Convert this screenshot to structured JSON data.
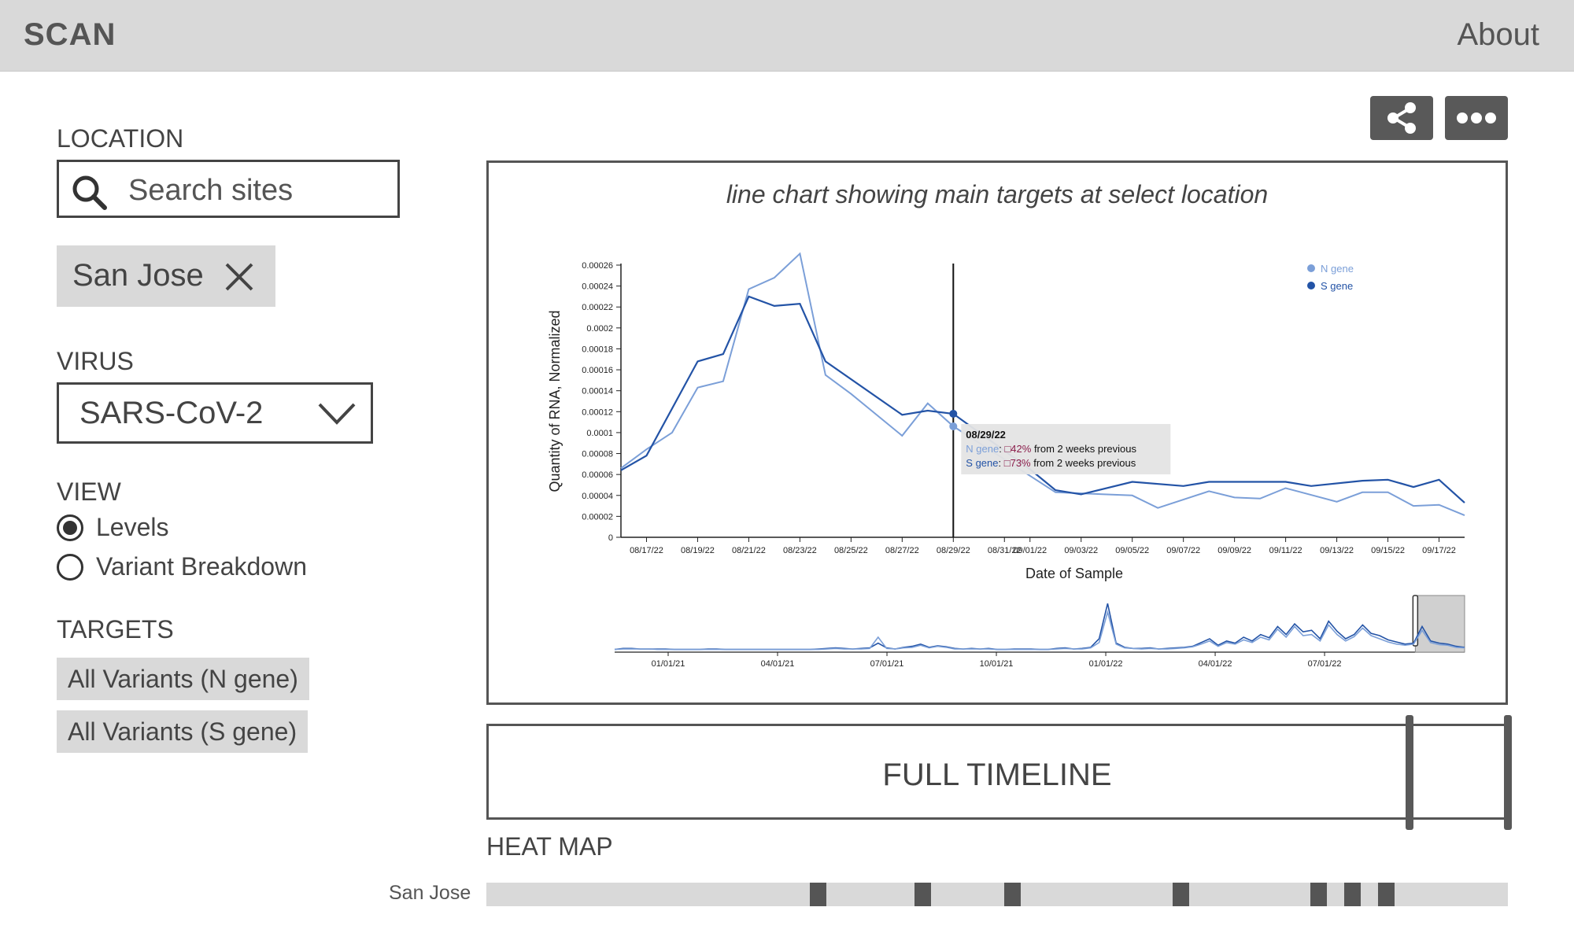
{
  "header": {
    "logo": "SCAN",
    "about": "About"
  },
  "sidebar": {
    "location_label": "LOCATION",
    "search_placeholder": "Search sites",
    "selected_location": "San Jose",
    "virus_label": "VIRUS",
    "virus_value": "SARS-CoV-2",
    "view_label": "VIEW",
    "view_options": [
      {
        "label": "Levels",
        "selected": true
      },
      {
        "label": "Variant Breakdown",
        "selected": false
      }
    ],
    "targets_label": "TARGETS",
    "targets": [
      "All Variants (N gene)",
      "All Variants (S gene)"
    ]
  },
  "actions": {
    "share_icon": "share-icon",
    "more_icon": "more-icon"
  },
  "chart_panel": {
    "caption": "line chart showing main targets at select location"
  },
  "chart_data": {
    "type": "line",
    "xlabel": "Date of Sample",
    "ylabel": "Quantity of RNA, Normalized",
    "ylim": [
      0,
      0.00026
    ],
    "y_ticks": [
      "0",
      "0.00002",
      "0.00004",
      "0.00006",
      "0.00008",
      "0.0001",
      "0.00012",
      "0.00014",
      "0.00016",
      "0.00018",
      "0.0002",
      "0.00022",
      "0.00024",
      "0.00026"
    ],
    "x_ticks": [
      "08/17/22",
      "08/19/22",
      "08/21/22",
      "08/23/22",
      "08/25/22",
      "08/27/22",
      "08/29/22",
      "08/31/22",
      "09/01/22",
      "09/03/22",
      "09/05/22",
      "09/07/22",
      "09/09/22",
      "09/11/22",
      "09/13/22",
      "09/15/22",
      "09/17/22"
    ],
    "x_range": [
      "08/16/22",
      "09/18/22"
    ],
    "legend_position": "top-right",
    "series": [
      {
        "name": "N gene",
        "color": "#7b9fd8",
        "points": [
          [
            "08/16/22",
            6.6e-05
          ],
          [
            "08/17/22",
            8.4e-05
          ],
          [
            "08/18/22",
            0.0001
          ],
          [
            "08/19/22",
            0.000143
          ],
          [
            "08/20/22",
            0.000149
          ],
          [
            "08/21/22",
            0.000237
          ],
          [
            "08/22/22",
            0.000248
          ],
          [
            "08/23/22",
            0.000271
          ],
          [
            "08/24/22",
            0.000155
          ],
          [
            "08/25/22",
            0.000137
          ],
          [
            "08/27/22",
            9.7e-05
          ],
          [
            "08/28/22",
            0.000128
          ],
          [
            "08/29/22",
            0.000106
          ],
          [
            "09/02/22",
            4.3e-05
          ],
          [
            "09/03/22",
            4.2e-05
          ],
          [
            "09/05/22",
            4e-05
          ],
          [
            "09/06/22",
            2.8e-05
          ],
          [
            "09/08/22",
            4.4e-05
          ],
          [
            "09/09/22",
            3.8e-05
          ],
          [
            "09/10/22",
            3.7e-05
          ],
          [
            "09/11/22",
            4.7e-05
          ],
          [
            "09/13/22",
            3.4e-05
          ],
          [
            "09/14/22",
            4.3e-05
          ],
          [
            "09/15/22",
            4.3e-05
          ],
          [
            "09/16/22",
            3e-05
          ],
          [
            "09/17/22",
            3.1e-05
          ],
          [
            "09/18/22",
            2.1e-05
          ]
        ]
      },
      {
        "name": "S gene",
        "color": "#2353a6",
        "points": [
          [
            "08/16/22",
            6.4e-05
          ],
          [
            "08/17/22",
            7.8e-05
          ],
          [
            "08/19/22",
            0.000168
          ],
          [
            "08/20/22",
            0.000175
          ],
          [
            "08/21/22",
            0.00023
          ],
          [
            "08/22/22",
            0.000221
          ],
          [
            "08/23/22",
            0.000223
          ],
          [
            "08/24/22",
            0.000168
          ],
          [
            "08/27/22",
            0.000117
          ],
          [
            "08/28/22",
            0.000121
          ],
          [
            "08/29/22",
            0.000118
          ],
          [
            "09/01/22",
            6.5e-05
          ],
          [
            "09/02/22",
            4.5e-05
          ],
          [
            "09/03/22",
            4.1e-05
          ],
          [
            "09/05/22",
            5.3e-05
          ],
          [
            "09/07/22",
            4.9e-05
          ],
          [
            "09/08/22",
            5.3e-05
          ],
          [
            "09/10/22",
            5.3e-05
          ],
          [
            "09/11/22",
            5.3e-05
          ],
          [
            "09/12/22",
            4.9e-05
          ],
          [
            "09/14/22",
            5.4e-05
          ],
          [
            "09/15/22",
            5.5e-05
          ],
          [
            "09/16/22",
            4.8e-05
          ],
          [
            "09/17/22",
            5.5e-05
          ],
          [
            "09/18/22",
            3.3e-05
          ]
        ]
      }
    ],
    "hover": {
      "date": "08/29/22",
      "n_label": "N gene",
      "n_change": "42%",
      "s_label": "S gene",
      "s_change": "73%",
      "suffix": "from 2 weeks previous"
    },
    "overview": {
      "x_ticks": [
        "01/01/21",
        "04/01/21",
        "07/01/21",
        "10/01/21",
        "01/01/22",
        "04/01/22",
        "07/01/22"
      ],
      "brush_fraction": [
        0.942,
        1.0
      ],
      "series_values": [
        [
          0.02,
          0.04,
          0.04,
          0.03,
          0.03,
          0.03,
          0.03,
          0.02,
          0.02,
          0.02,
          0.02,
          0.03,
          0.03,
          0.02,
          0.02,
          0.02,
          0.02,
          0.02,
          0.02,
          0.02,
          0.02,
          0.02,
          0.02,
          0.02,
          0.03,
          0.04,
          0.05,
          0.04,
          0.03,
          0.04,
          0.05,
          0.14,
          0.05,
          0.03,
          0.06,
          0.08,
          0.12,
          0.06,
          0.09,
          0.07,
          0.04,
          0.03,
          0.04,
          0.03,
          0.04,
          0.02,
          0.02,
          0.03,
          0.03,
          0.03,
          0.02,
          0.02,
          0.04,
          0.05,
          0.03,
          0.04,
          0.06,
          0.22,
          0.88,
          0.14,
          0.06,
          0.04,
          0.04,
          0.05,
          0.03,
          0.04,
          0.05,
          0.06,
          0.08,
          0.15,
          0.22,
          0.1,
          0.18,
          0.14,
          0.25,
          0.18,
          0.3,
          0.24,
          0.45,
          0.3,
          0.5,
          0.35,
          0.38,
          0.22,
          0.55,
          0.36,
          0.22,
          0.3,
          0.48,
          0.32,
          0.28,
          0.2,
          0.16,
          0.12,
          0.14,
          0.45,
          0.18,
          0.14,
          0.12,
          0.08,
          0.06
        ],
        [
          0.02,
          0.03,
          0.03,
          0.03,
          0.03,
          0.02,
          0.02,
          0.02,
          0.02,
          0.02,
          0.02,
          0.02,
          0.02,
          0.02,
          0.02,
          0.02,
          0.02,
          0.02,
          0.02,
          0.02,
          0.02,
          0.02,
          0.02,
          0.02,
          0.02,
          0.03,
          0.04,
          0.03,
          0.03,
          0.03,
          0.04,
          0.25,
          0.04,
          0.03,
          0.05,
          0.06,
          0.1,
          0.05,
          0.08,
          0.06,
          0.03,
          0.03,
          0.03,
          0.03,
          0.03,
          0.02,
          0.02,
          0.02,
          0.02,
          0.02,
          0.02,
          0.02,
          0.03,
          0.04,
          0.03,
          0.03,
          0.05,
          0.15,
          0.72,
          0.12,
          0.05,
          0.04,
          0.03,
          0.04,
          0.03,
          0.03,
          0.04,
          0.05,
          0.07,
          0.12,
          0.18,
          0.08,
          0.15,
          0.12,
          0.2,
          0.15,
          0.25,
          0.2,
          0.4,
          0.25,
          0.45,
          0.28,
          0.3,
          0.18,
          0.48,
          0.3,
          0.18,
          0.26,
          0.42,
          0.28,
          0.22,
          0.16,
          0.12,
          0.1,
          0.12,
          0.38,
          0.15,
          0.11,
          0.1,
          0.06,
          0.05
        ]
      ]
    }
  },
  "timeline": {
    "label": "FULL TIMELINE",
    "handle_fractions": [
      0.9,
      1.0
    ]
  },
  "heat_map": {
    "title": "HEAT MAP",
    "rows": [
      {
        "label": "San Jose",
        "cells": [
          {
            "start": 0.317,
            "end": 0.333
          },
          {
            "start": 0.419,
            "end": 0.435
          },
          {
            "start": 0.507,
            "end": 0.523
          },
          {
            "start": 0.672,
            "end": 0.688
          },
          {
            "start": 0.807,
            "end": 0.823
          },
          {
            "start": 0.84,
            "end": 0.856
          },
          {
            "start": 0.873,
            "end": 0.889
          }
        ]
      }
    ]
  }
}
